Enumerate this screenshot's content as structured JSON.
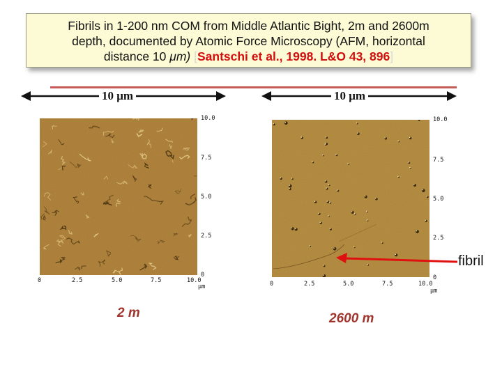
{
  "title": {
    "line1": "Fibrils  in 1-200 nm COM from Middle Atlantic Bight, 2m and 2600m",
    "line2": "depth, documented by Atomic Force Microscopy (AFM, horizontal",
    "line3_prefix": "distance 10 ",
    "line3_unit": "μm) ",
    "bracket_open": "[",
    "citation": "Santschi et al., 1998. L&O 43, 896",
    "bracket_close": "]"
  },
  "scale_left": "10 μm",
  "scale_right": "10 μm",
  "panels": [
    {
      "y_ticks": [
        "10.0",
        "7.5",
        "5.0",
        "2.5",
        "0"
      ],
      "x_ticks": [
        "0",
        "2.5",
        "5.0",
        "7.5",
        "10.0"
      ],
      "unit": "μm",
      "depth_label": "2 m"
    },
    {
      "y_ticks": [
        "10.0",
        "7.5",
        "5.0",
        "2.5",
        "0"
      ],
      "x_ticks": [
        "0",
        "2.5",
        "5.0",
        "7.5",
        "10.0"
      ],
      "unit": "μm",
      "depth_label": "2600 m"
    }
  ],
  "fibril_label": "fibril",
  "colors": {
    "afm_base": "#a87a32",
    "citation": "#d10f0f",
    "depth_label": "#a0342c",
    "arrow": "#e01010"
  }
}
